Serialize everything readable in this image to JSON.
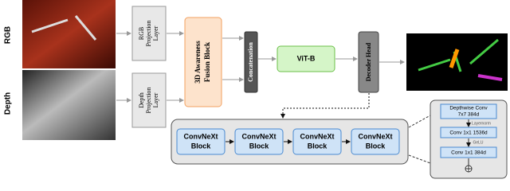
{
  "inputs": {
    "rgb": "RGB",
    "depth": "Depth"
  },
  "rgb_projection": [
    "RGB",
    "Projection",
    "Layer"
  ],
  "depth_projection": [
    "Depth",
    "Projection",
    "Layer"
  ],
  "fusion": [
    "3D Awareness",
    "Fusion Block"
  ],
  "concatenation": "Concatenation",
  "vit": "ViT-B",
  "decoder": "Decoder Head",
  "convnext_blocks": [
    [
      "ConvNeXt",
      "Block"
    ],
    [
      "ConvNeXt",
      "Block"
    ],
    [
      "ConvNeXt",
      "Block"
    ],
    [
      "ConvNeXt",
      "Block"
    ]
  ],
  "detail": {
    "depthwise": [
      "Depthwise Conv",
      "7x7 384d"
    ],
    "layernorm": "Layernorm",
    "conv1": "Conv 1x1 1536d",
    "gelu": "GeLU",
    "conv2": "Conv 1x1 384d"
  }
}
